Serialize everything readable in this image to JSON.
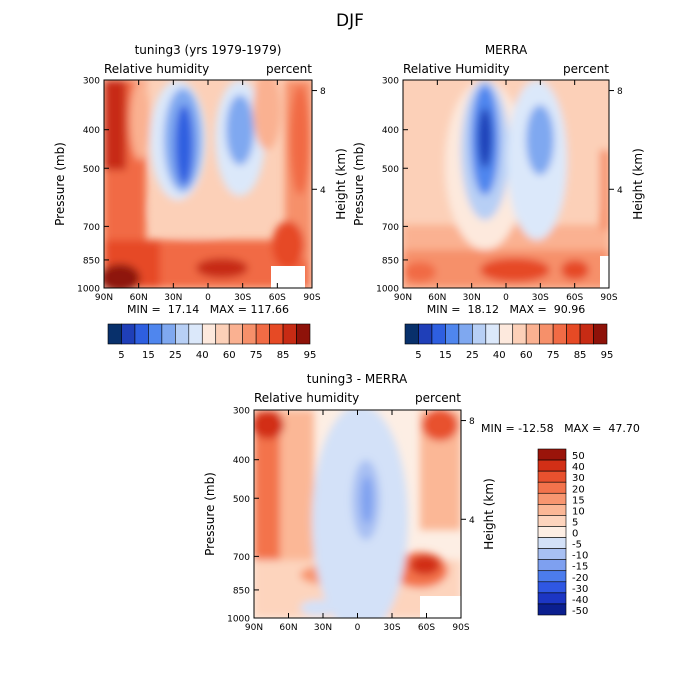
{
  "figure_title": "DJF",
  "colors": {
    "model_obs_palette": [
      "#08306b",
      "#1f3fb8",
      "#2e5fe0",
      "#4f86ee",
      "#7fa8f0",
      "#b7cff5",
      "#dbe8fa",
      "#fde9dd",
      "#fcd0b8",
      "#fab191",
      "#f6906a",
      "#f16b45",
      "#e64a25",
      "#c72b14",
      "#8e1209"
    ],
    "diff_palette": [
      "#0b1f8f",
      "#1c36c4",
      "#2f57e3",
      "#4c7ced",
      "#7ea0f0",
      "#a8c0f3",
      "#d3e1f8",
      "#fdeee4",
      "#fdd4bd",
      "#fbb796",
      "#f89670",
      "#f3734c",
      "#e8512e",
      "#d22f16",
      "#9a140a"
    ]
  },
  "panels": [
    {
      "title": "tuning3 (yrs 1979-1979)",
      "left_label": "Relative humidity",
      "right_label": "percent",
      "ylabel": "Pressure (mb)",
      "right_axis_label": "Height (km)",
      "stats": "MIN =  17.14   MAX = 117.66"
    },
    {
      "title": "MERRA",
      "left_label": "Relative Humidity",
      "right_label": "percent",
      "ylabel": "Pressure (mb)",
      "right_axis_label": "Height (km)",
      "stats": "MIN =  18.12   MAX =  90.96"
    },
    {
      "title": "tuning3 - MERRA",
      "left_label": "Relative humidity",
      "right_label": "percent",
      "ylabel": "Pressure (mb)",
      "right_axis_label": "Height (km)",
      "stats": "MIN = -12.58   MAX =  47.70"
    }
  ],
  "chart_data": [
    {
      "type": "heatmap",
      "title": "tuning3 (yrs 1979-1979)",
      "variable": "Relative humidity",
      "units": "percent",
      "xlabel": "",
      "ylabel": "Pressure (mb)",
      "y2label": "Height (km)",
      "x_ticks": [
        "90N",
        "60N",
        "30N",
        "0",
        "30S",
        "60S",
        "90S"
      ],
      "y_ticks": [
        "300",
        "400",
        "500",
        "700",
        "850",
        "1000"
      ],
      "y2_ticks": [
        "8",
        "4"
      ],
      "min": 17.14,
      "max": 117.66,
      "colorbar_labels": [
        "5",
        "15",
        "25",
        "40",
        "60",
        "75",
        "85",
        "95"
      ]
    },
    {
      "type": "heatmap",
      "title": "MERRA",
      "variable": "Relative Humidity",
      "units": "percent",
      "xlabel": "",
      "ylabel": "Pressure (mb)",
      "y2label": "Height (km)",
      "x_ticks": [
        "90N",
        "60N",
        "30N",
        "0",
        "30S",
        "60S",
        "90S"
      ],
      "y_ticks": [
        "300",
        "400",
        "500",
        "700",
        "850",
        "1000"
      ],
      "y2_ticks": [
        "8",
        "4"
      ],
      "min": 18.12,
      "max": 90.96,
      "colorbar_labels": [
        "5",
        "15",
        "25",
        "40",
        "60",
        "75",
        "85",
        "95"
      ]
    },
    {
      "type": "heatmap",
      "title": "tuning3 - MERRA",
      "variable": "Relative humidity",
      "units": "percent",
      "xlabel": "",
      "ylabel": "Pressure (mb)",
      "y2label": "Height (km)",
      "x_ticks": [
        "90N",
        "60N",
        "30N",
        "0",
        "30S",
        "60S",
        "90S"
      ],
      "y_ticks": [
        "300",
        "400",
        "500",
        "700",
        "850",
        "1000"
      ],
      "y2_ticks": [
        "8",
        "4"
      ],
      "min": -12.58,
      "max": 47.7,
      "colorbar_labels": [
        "50",
        "40",
        "30",
        "20",
        "15",
        "10",
        "5",
        "0",
        "-5",
        "-10",
        "-15",
        "-20",
        "-30",
        "-40",
        "-50"
      ]
    }
  ]
}
